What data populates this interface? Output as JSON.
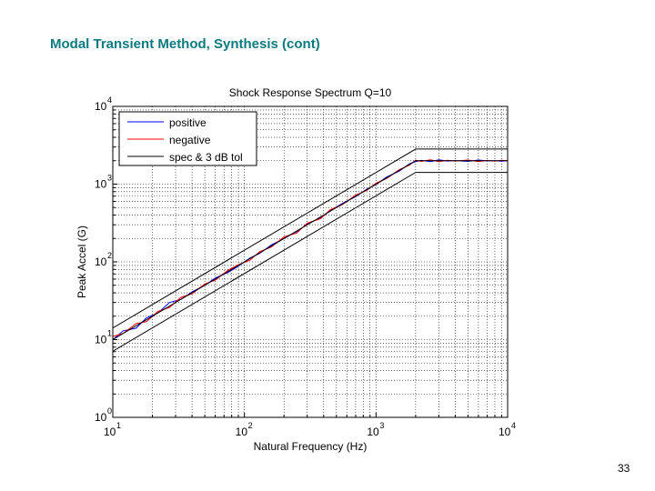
{
  "slide": {
    "title": "Modal Transient Method, Synthesis (cont)",
    "page_number": "33"
  },
  "chart_data": {
    "type": "line",
    "title": "Shock Response Spectrum Q=10",
    "xlabel": "Natural Frequency (Hz)",
    "ylabel": "Peak Accel (G)",
    "xscale": "log",
    "yscale": "log",
    "xlim": [
      10,
      10000
    ],
    "ylim": [
      1,
      10000
    ],
    "grid": true,
    "legend_position": "top-left",
    "x_ticks": [
      {
        "value": 10,
        "base": "10",
        "exp": "1"
      },
      {
        "value": 100,
        "base": "10",
        "exp": "2"
      },
      {
        "value": 1000,
        "base": "10",
        "exp": "3"
      },
      {
        "value": 10000,
        "base": "10",
        "exp": "4"
      }
    ],
    "y_ticks": [
      {
        "value": 1,
        "base": "10",
        "exp": "0"
      },
      {
        "value": 10,
        "base": "10",
        "exp": "1"
      },
      {
        "value": 100,
        "base": "10",
        "exp": "2"
      },
      {
        "value": 1000,
        "base": "10",
        "exp": "3"
      },
      {
        "value": 10000,
        "base": "10",
        "exp": "4"
      }
    ],
    "series": [
      {
        "name": "positive",
        "color": "#0000ff",
        "x": [
          10,
          12,
          15,
          18,
          22,
          27,
          33,
          40,
          50,
          60,
          75,
          90,
          110,
          130,
          160,
          200,
          250,
          300,
          380,
          450,
          550,
          700,
          850,
          1000,
          1200,
          1500,
          1800,
          2000,
          2200,
          2600,
          3000,
          3500,
          4000,
          5000,
          6000,
          7000,
          8000,
          9000,
          10000
        ],
        "y": [
          10,
          13,
          14,
          19,
          22,
          30,
          33,
          41,
          50,
          62,
          73,
          88,
          112,
          128,
          165,
          200,
          245,
          305,
          370,
          455,
          560,
          690,
          860,
          990,
          1230,
          1470,
          1830,
          1950,
          2020,
          1950,
          2050,
          1980,
          2010,
          1960,
          2040,
          1990,
          2000,
          1970,
          2010
        ]
      },
      {
        "name": "negative",
        "color": "#ff0000",
        "x": [
          10,
          12,
          15,
          18,
          22,
          27,
          33,
          40,
          50,
          60,
          75,
          90,
          110,
          130,
          160,
          200,
          250,
          300,
          380,
          450,
          550,
          700,
          850,
          1000,
          1200,
          1500,
          1800,
          2000,
          2200,
          2600,
          3000,
          3500,
          4000,
          5000,
          6000,
          7000,
          8000,
          9000,
          10000
        ],
        "y": [
          11,
          12,
          16,
          17,
          23,
          26,
          35,
          39,
          52,
          58,
          78,
          92,
          105,
          135,
          155,
          210,
          235,
          315,
          360,
          470,
          540,
          720,
          830,
          1030,
          1180,
          1530,
          1760,
          2030,
          1960,
          2060,
          1940,
          2030,
          1980,
          2040,
          1950,
          2020,
          1980,
          2030,
          1990
        ]
      },
      {
        "name": "spec & 3 dB tol",
        "color": "#000000",
        "x": [
          10,
          2000,
          10000
        ],
        "y": [
          10,
          2000,
          2000
        ]
      }
    ],
    "tolerance_bands": {
      "color": "#000000",
      "factor": 1.4125,
      "x": [
        10,
        2000,
        10000
      ],
      "y": [
        10,
        2000,
        2000
      ]
    }
  }
}
